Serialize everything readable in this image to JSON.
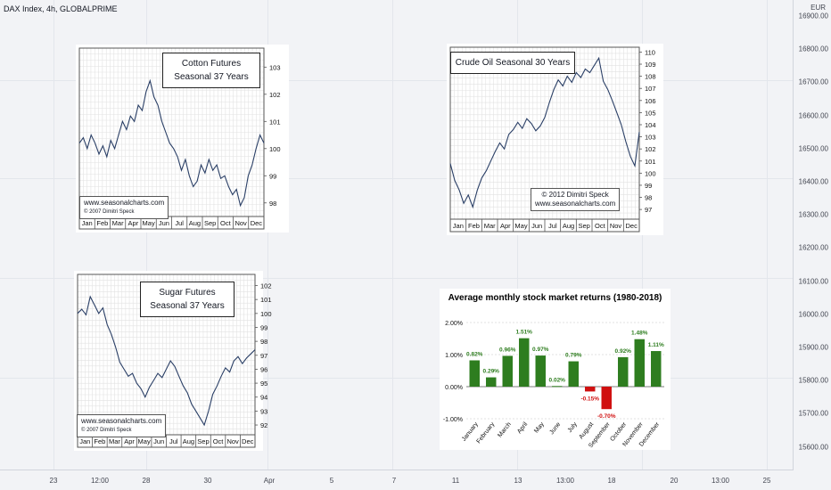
{
  "header": {
    "symbol": "DAX Index, 4h, GLOBALPRIME"
  },
  "price_axis": {
    "currency": "EUR",
    "ticks": [
      "16900.00",
      "16800.00",
      "16700.00",
      "16600.00",
      "16500.00",
      "16400.00",
      "16300.00",
      "16200.00",
      "16100.00",
      "16000.00",
      "15900.00",
      "15800.00",
      "15700.00",
      "15600.00"
    ]
  },
  "time_axis": {
    "ticks": [
      "23",
      "12:00",
      "28",
      "30",
      "Apr",
      "5",
      "7",
      "11",
      "13",
      "13:00",
      "18",
      "20",
      "13:00",
      "25"
    ]
  },
  "chart_data": [
    {
      "type": "line",
      "title": "Cotton Futures\nSeasonal 37 Years",
      "months": [
        "Jan",
        "Feb",
        "Mar",
        "Apr",
        "May",
        "Jun",
        "Jul",
        "Aug",
        "Sep",
        "Oct",
        "Nov",
        "Dec"
      ],
      "ylim": [
        97.5,
        103.7
      ],
      "yticks": [
        98,
        99,
        100,
        101,
        102,
        103
      ],
      "values": [
        100.2,
        100.4,
        100.0,
        100.5,
        100.2,
        99.8,
        100.1,
        99.7,
        100.3,
        100.0,
        100.5,
        101.0,
        100.7,
        101.2,
        101.0,
        101.6,
        101.4,
        102.1,
        102.5,
        101.9,
        101.6,
        101.0,
        100.6,
        100.2,
        100.0,
        99.7,
        99.2,
        99.6,
        99.0,
        98.6,
        98.8,
        99.4,
        99.1,
        99.6,
        99.2,
        99.4,
        98.9,
        99.0,
        98.6,
        98.3,
        98.5,
        97.9,
        98.2,
        99.0,
        99.4,
        100.0,
        100.5,
        100.2
      ],
      "credit": [
        "www.seasonalcharts.com",
        "© 2007   Dimitri Speck"
      ]
    },
    {
      "type": "line",
      "title": "Crude Oil Seasonal 30 Years",
      "months": [
        "Jan",
        "Feb",
        "Mar",
        "Apr",
        "May",
        "Jun",
        "Jul",
        "Aug",
        "Sep",
        "Oct",
        "Nov",
        "Dec"
      ],
      "ylim": [
        96.2,
        110.4
      ],
      "yticks": [
        97,
        98,
        99,
        100,
        101,
        102,
        103,
        104,
        105,
        106,
        107,
        108,
        109,
        110
      ],
      "values": [
        100.8,
        99.4,
        98.6,
        97.5,
        98.2,
        97.2,
        98.6,
        99.6,
        100.2,
        101.0,
        101.8,
        102.5,
        102.0,
        103.2,
        103.6,
        104.2,
        103.7,
        104.5,
        104.1,
        103.5,
        103.9,
        104.6,
        105.8,
        106.9,
        107.7,
        107.2,
        108.0,
        107.5,
        108.3,
        107.9,
        108.6,
        108.3,
        108.9,
        109.5,
        107.6,
        106.9,
        106.0,
        105.0,
        104.0,
        102.6,
        101.4,
        100.6,
        103.4
      ],
      "credit": [
        "© 2012  Dimitri Speck",
        "www.seasonalcharts.com"
      ]
    },
    {
      "type": "line",
      "title": "Sugar Futures\nSeasonal 37 Years",
      "months": [
        "Jan",
        "Feb",
        "Mar",
        "Apr",
        "May",
        "Jun",
        "Jul",
        "Aug",
        "Sep",
        "Oct",
        "Nov",
        "Dec"
      ],
      "ylim": [
        91.3,
        102.8
      ],
      "yticks": [
        92,
        93,
        94,
        95,
        96,
        97,
        98,
        99,
        100,
        101,
        102
      ],
      "values": [
        100.0,
        100.3,
        99.9,
        101.2,
        100.6,
        100.0,
        100.4,
        99.2,
        98.5,
        97.6,
        96.5,
        96.0,
        95.5,
        95.7,
        95.0,
        94.6,
        94.0,
        94.7,
        95.2,
        95.7,
        95.4,
        96.0,
        96.6,
        96.2,
        95.5,
        94.8,
        94.3,
        93.5,
        93.0,
        92.5,
        92.0,
        93.0,
        94.2,
        94.8,
        95.5,
        96.1,
        95.8,
        96.6,
        96.9,
        96.4,
        96.8,
        97.1,
        97.4
      ],
      "credit": [
        "www.seasonalcharts.com",
        "© 2007   Dimitri Speck"
      ]
    },
    {
      "type": "bar",
      "title": "Average monthly stock market returns (1980-2018)",
      "categories": [
        "January",
        "February",
        "March",
        "April",
        "May",
        "June",
        "July",
        "August",
        "September",
        "October",
        "November",
        "December"
      ],
      "values": [
        0.82,
        0.29,
        0.96,
        1.51,
        0.97,
        0.02,
        0.79,
        -0.15,
        -0.7,
        0.92,
        1.48,
        1.11
      ],
      "value_labels": [
        "0.82%",
        "0.29%",
        "0.96%",
        "1.51%",
        "0.97%",
        "0.02%",
        "0.79%",
        "-0.15%",
        "-0.70%",
        "0.92%",
        "1.48%",
        "1.11%"
      ],
      "ylim": [
        -1.0,
        2.0
      ],
      "yticks": [
        "2.00%",
        "1.00%",
        "0.00%",
        "-1.00%"
      ],
      "ytick_values": [
        2.0,
        1.0,
        0.0,
        -1.0
      ],
      "colors": {
        "positive": "#2e7d1f",
        "negative": "#d01010"
      }
    }
  ]
}
